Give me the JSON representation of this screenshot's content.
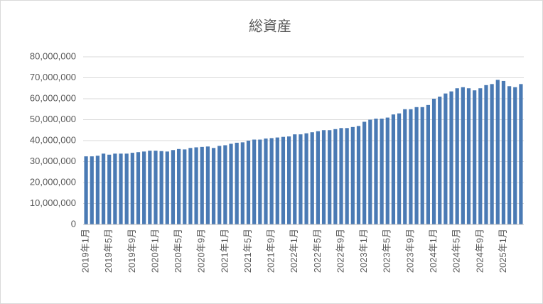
{
  "chart_data": {
    "type": "bar",
    "title": "総資産",
    "categories": [
      "2019年1月",
      null,
      null,
      null,
      "2019年5月",
      null,
      null,
      null,
      "2019年9月",
      null,
      null,
      null,
      "2020年1月",
      null,
      null,
      null,
      "2020年5月",
      null,
      null,
      null,
      "2020年9月",
      null,
      null,
      null,
      "2021年1月",
      null,
      null,
      null,
      "2021年5月",
      null,
      null,
      null,
      "2021年9月",
      null,
      null,
      null,
      "2022年1月",
      null,
      null,
      null,
      "2022年5月",
      null,
      null,
      null,
      "2022年9月",
      null,
      null,
      null,
      "2023年1月",
      null,
      null,
      null,
      "2023年5月",
      null,
      null,
      null,
      "2023年9月",
      null,
      null,
      null,
      "2024年1月",
      null,
      null,
      null,
      "2024年5月",
      null,
      null,
      null,
      "2024年9月",
      null,
      null,
      null,
      "2025年1月",
      null,
      null,
      null
    ],
    "values": [
      32500000,
      32500000,
      32800000,
      33800000,
      33300000,
      33800000,
      33800000,
      33800000,
      34200000,
      34500000,
      34800000,
      35200000,
      35200000,
      35000000,
      34800000,
      35500000,
      36000000,
      35800000,
      36500000,
      36800000,
      37000000,
      37200000,
      36500000,
      37500000,
      37800000,
      38500000,
      39000000,
      39200000,
      40000000,
      40500000,
      40500000,
      41000000,
      41200000,
      41500000,
      41800000,
      42000000,
      43000000,
      43000000,
      43500000,
      44000000,
      44500000,
      45000000,
      45000000,
      45500000,
      46000000,
      46000000,
      46500000,
      47000000,
      49000000,
      50000000,
      50500000,
      50500000,
      51000000,
      52500000,
      53000000,
      55000000,
      55000000,
      56000000,
      56000000,
      57000000,
      60000000,
      61000000,
      62500000,
      63500000,
      65000000,
      65500000,
      65000000,
      64000000,
      65000000,
      66500000,
      67000000,
      69000000,
      68500000,
      66000000,
      65500000,
      67000000
    ],
    "color": "#4a7ab4",
    "ylim": [
      0,
      80000000
    ],
    "yticks": [
      0,
      {
        "value": 10000000,
        "label": "10,000,000"
      },
      {
        "value": 20000000,
        "label": "20,000,000"
      },
      {
        "value": 30000000,
        "label": "30,000,000"
      },
      {
        "value": 40000000,
        "label": "40,000,000"
      },
      {
        "value": 50000000,
        "label": "50,000,000"
      },
      {
        "value": 60000000,
        "label": "60,000,000"
      },
      {
        "value": 70000000,
        "label": "70,000,000"
      },
      {
        "value": 80000000,
        "label": "80,000,000"
      }
    ],
    "grid": true
  }
}
